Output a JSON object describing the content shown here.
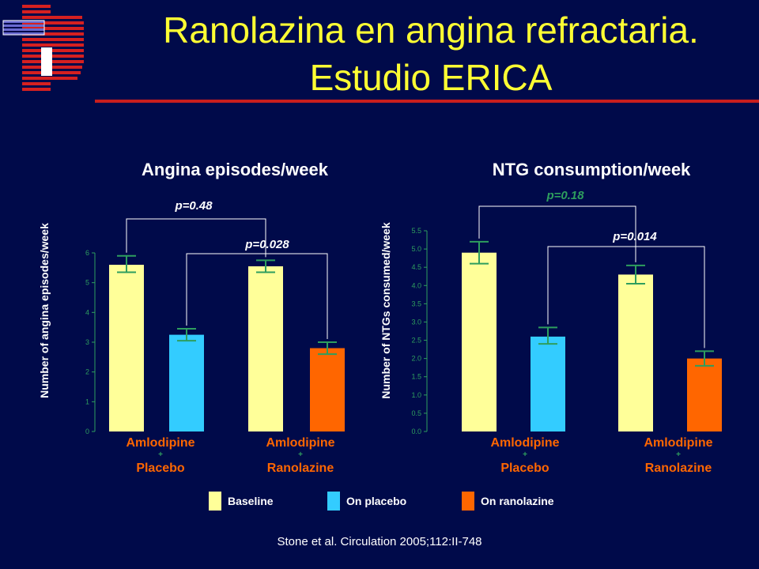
{
  "title": {
    "line1": "Ranolazina en angina refractaria.",
    "line2": "Estudio ERICA"
  },
  "colors": {
    "background": "#000a4a",
    "title": "#ffff33",
    "accent_rule": "#c81e1e",
    "baseline": "#ffff99",
    "on_placebo": "#33ccff",
    "on_ranolazine": "#ff6600",
    "axis_text": "#2e9e5e",
    "errorbar": "#2e9e5e",
    "group_label": "#ff6600",
    "pvalue": "#ffffff",
    "pvalue_green": "#2e9e5e"
  },
  "logo": {
    "icon": "hospital-logo-icon"
  },
  "legend": [
    {
      "label": "Baseline",
      "color": "#ffff99"
    },
    {
      "label": "On placebo",
      "color": "#33ccff"
    },
    {
      "label": "On ranolazine",
      "color": "#ff6600"
    }
  ],
  "citation": "Stone et al. Circulation 2005;112:II-748",
  "chart_data": [
    {
      "type": "bar",
      "title": "Angina episodes/week",
      "ylabel": "Number of angina episodes/week",
      "ylim": [
        0,
        6
      ],
      "yticks": [
        "0",
        "1",
        "2",
        "3",
        "4",
        "5",
        "6"
      ],
      "groups": [
        {
          "label_top": "Amlodipine",
          "plus": "+",
          "label_bottom": "Placebo"
        },
        {
          "label_top": "Amlodipine",
          "plus": "+",
          "label_bottom": "Ranolazine"
        }
      ],
      "bars": [
        {
          "group": 0,
          "series": "Baseline",
          "value": 5.6,
          "err_low": 5.35,
          "err_high": 5.9
        },
        {
          "group": 0,
          "series": "On placebo",
          "value": 3.25,
          "err_low": 3.05,
          "err_high": 3.45
        },
        {
          "group": 1,
          "series": "Baseline",
          "value": 5.55,
          "err_low": 5.35,
          "err_high": 5.75
        },
        {
          "group": 1,
          "series": "On ranolazine",
          "value": 2.8,
          "err_low": 2.6,
          "err_high": 3.0
        }
      ],
      "pvalues": [
        {
          "text": "p=0.48",
          "from": 0,
          "to": 2,
          "color": "#ffffff"
        },
        {
          "text": "p=0.028",
          "from": 1,
          "to": 3,
          "color": "#ffffff"
        }
      ]
    },
    {
      "type": "bar",
      "title": "NTG consumption/week",
      "ylabel": "Number of NTGs consumed/week",
      "ylim": [
        0,
        5.5
      ],
      "yticks": [
        "0.0",
        "0.5",
        "1.0",
        "1.5",
        "2.0",
        "2.5",
        "3.0",
        "3.5",
        "4.0",
        "4.5",
        "5.0",
        "5.5"
      ],
      "groups": [
        {
          "label_top": "Amlodipine",
          "plus": "+",
          "label_bottom": "Placebo"
        },
        {
          "label_top": "Amlodipine",
          "plus": "+",
          "label_bottom": "Ranolazine"
        }
      ],
      "bars": [
        {
          "group": 0,
          "series": "Baseline",
          "value": 4.9,
          "err_low": 4.6,
          "err_high": 5.2
        },
        {
          "group": 0,
          "series": "On placebo",
          "value": 2.6,
          "err_low": 2.4,
          "err_high": 2.85
        },
        {
          "group": 1,
          "series": "Baseline",
          "value": 4.3,
          "err_low": 4.05,
          "err_high": 4.55
        },
        {
          "group": 1,
          "series": "On ranolazine",
          "value": 2.0,
          "err_low": 1.8,
          "err_high": 2.2
        }
      ],
      "pvalues": [
        {
          "text": "p=0.18",
          "from": 0,
          "to": 2,
          "color": "#2e9e5e"
        },
        {
          "text": "p=0.014",
          "from": 1,
          "to": 3,
          "color": "#ffffff"
        }
      ]
    }
  ]
}
